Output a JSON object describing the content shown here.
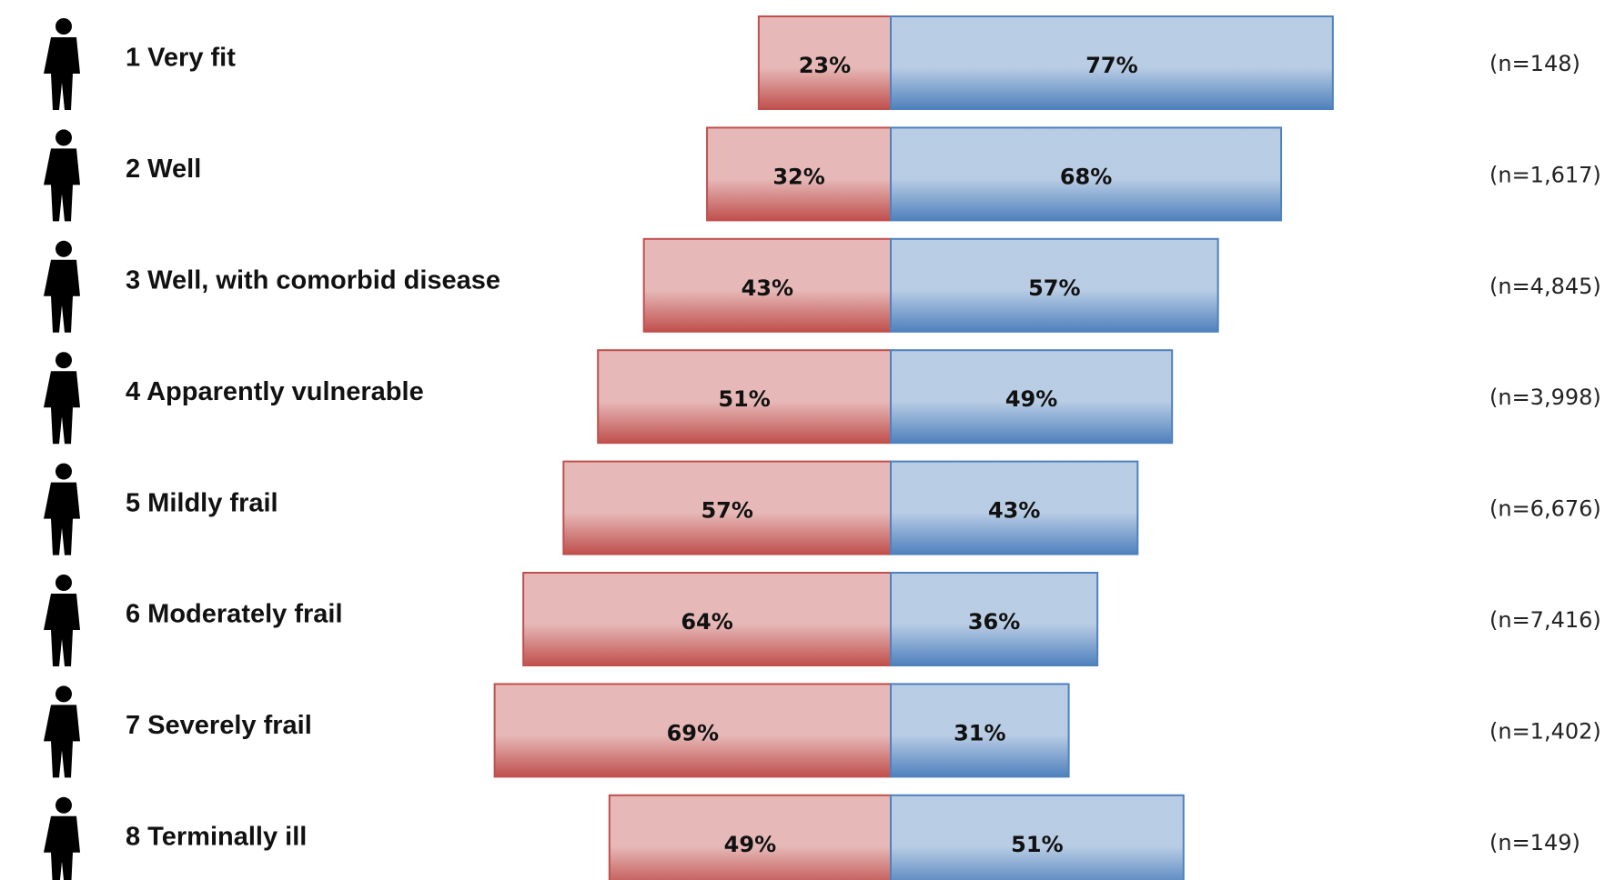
{
  "chart_data": {
    "type": "diverging-bar",
    "categories": [
      "1 Very fit",
      "2 Well",
      "3 Well, with comorbid disease",
      "4 Apparently vulnerable",
      "5 Mildly frail",
      "6 Moderately frail",
      "7 Severely frail",
      "8 Terminally ill"
    ],
    "series": [
      {
        "color": "#c0504d",
        "values": [
          23,
          32,
          43,
          51,
          57,
          64,
          69,
          49
        ],
        "value_labels": [
          "23%",
          "32%",
          "43%",
          "51%",
          "57%",
          "64%",
          "69%",
          "49%"
        ]
      },
      {
        "color": "#4f81bd",
        "values": [
          77,
          68,
          57,
          49,
          43,
          36,
          31,
          51
        ],
        "value_labels": [
          "77%",
          "68%",
          "57%",
          "49%",
          "43%",
          "36%",
          "31%",
          "51%"
        ]
      }
    ],
    "annotations": [
      "(n=148)",
      "(n=1,617)",
      "(n=4,845)",
      "(n=3,998)",
      "(n=6,676)",
      "(n=7,416)",
      "(n=1,402)",
      "(n=149)"
    ]
  }
}
